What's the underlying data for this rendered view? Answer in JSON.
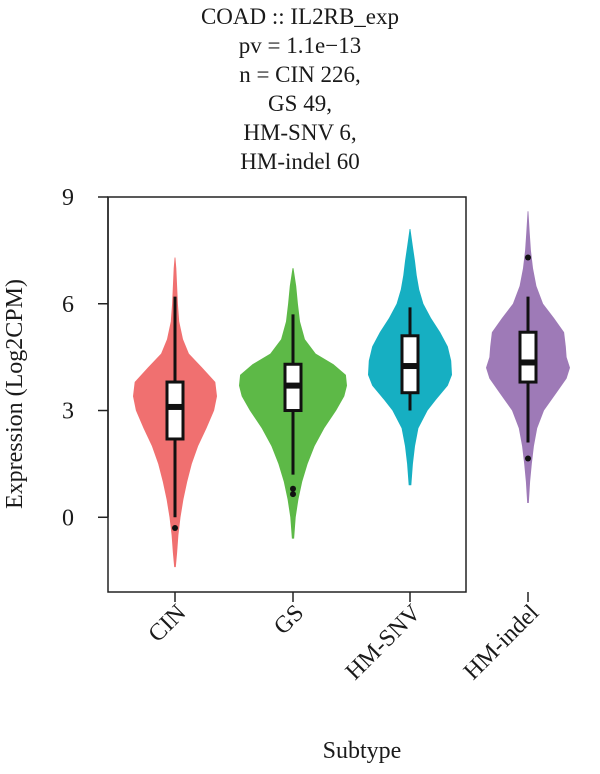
{
  "title_lines": [
    "COAD :: IL2RB_exp",
    "pv = 1.1e−13",
    "n = CIN 226,",
    "GS 49,",
    "HM-SNV 6,",
    "HM-indel 60"
  ],
  "chart_data": {
    "type": "violin",
    "title": "COAD :: IL2RB_exp",
    "subtitle": "pv = 1.1e−13; n = CIN 226, GS 49, HM-SNV 6, HM-indel 60",
    "xlabel": "Subtype",
    "ylabel": "Expression (Log2CPM)",
    "ylim": [
      -2.1,
      9
    ],
    "yticks": [
      0,
      3,
      6,
      9
    ],
    "categories": [
      "CIN",
      "GS",
      "HM-SNV",
      "HM-indel"
    ],
    "grid": false,
    "legend": "none",
    "series": [
      {
        "category": "CIN",
        "color": "#F07070",
        "n": 226,
        "min": -1.4,
        "max": 7.3,
        "box": {
          "whisker_low": 0.0,
          "q1": 2.2,
          "median": 3.1,
          "q3": 3.8,
          "whisker_high": 6.2
        },
        "outliers": [
          -0.3
        ],
        "density": [
          [
            -1.4,
            0.02
          ],
          [
            -1.0,
            0.05
          ],
          [
            -0.5,
            0.08
          ],
          [
            0.0,
            0.13
          ],
          [
            0.5,
            0.2
          ],
          [
            1.0,
            0.29
          ],
          [
            1.5,
            0.4
          ],
          [
            2.0,
            0.55
          ],
          [
            2.5,
            0.75
          ],
          [
            3.0,
            0.93
          ],
          [
            3.4,
            1.0
          ],
          [
            3.8,
            0.96
          ],
          [
            4.2,
            0.65
          ],
          [
            4.6,
            0.33
          ],
          [
            5.0,
            0.19
          ],
          [
            5.5,
            0.1
          ],
          [
            6.0,
            0.07
          ],
          [
            6.5,
            0.05
          ],
          [
            7.0,
            0.03
          ],
          [
            7.3,
            0.01
          ]
        ]
      },
      {
        "category": "GS",
        "color": "#5DB947",
        "n": 49,
        "min": -0.6,
        "max": 7.0,
        "box": {
          "whisker_low": 1.2,
          "q1": 3.0,
          "median": 3.7,
          "q3": 4.3,
          "whisker_high": 5.7
        },
        "outliers": [
          0.8,
          0.65
        ],
        "density": [
          [
            -0.6,
            0.02
          ],
          [
            0.0,
            0.05
          ],
          [
            0.5,
            0.1
          ],
          [
            1.0,
            0.17
          ],
          [
            1.5,
            0.27
          ],
          [
            2.0,
            0.4
          ],
          [
            2.5,
            0.58
          ],
          [
            3.0,
            0.8
          ],
          [
            3.4,
            0.95
          ],
          [
            3.7,
            1.0
          ],
          [
            4.0,
            0.98
          ],
          [
            4.3,
            0.75
          ],
          [
            4.6,
            0.42
          ],
          [
            5.0,
            0.22
          ],
          [
            5.5,
            0.13
          ],
          [
            6.0,
            0.09
          ],
          [
            6.5,
            0.06
          ],
          [
            7.0,
            0.01
          ]
        ]
      },
      {
        "category": "HM-SNV",
        "color": "#16AFC2",
        "n": 6,
        "min": 0.9,
        "max": 8.1,
        "box": {
          "whisker_low": 3.0,
          "q1": 3.5,
          "median": 4.25,
          "q3": 5.1,
          "whisker_high": 5.9
        },
        "outliers": [],
        "density": [
          [
            0.9,
            0.03
          ],
          [
            1.5,
            0.07
          ],
          [
            2.0,
            0.12
          ],
          [
            2.5,
            0.2
          ],
          [
            3.0,
            0.42
          ],
          [
            3.3,
            0.62
          ],
          [
            3.7,
            0.9
          ],
          [
            4.0,
            1.0
          ],
          [
            4.4,
            0.98
          ],
          [
            4.8,
            0.9
          ],
          [
            5.2,
            0.72
          ],
          [
            5.6,
            0.5
          ],
          [
            6.0,
            0.32
          ],
          [
            6.4,
            0.22
          ],
          [
            6.8,
            0.16
          ],
          [
            7.2,
            0.12
          ],
          [
            7.6,
            0.07
          ],
          [
            8.1,
            0.01
          ]
        ]
      },
      {
        "category": "HM-indel",
        "color": "#9E7AB7",
        "n": 60,
        "min": 0.4,
        "max": 8.6,
        "box": {
          "whisker_low": 2.1,
          "q1": 3.8,
          "median": 4.35,
          "q3": 5.2,
          "whisker_high": 6.2
        },
        "outliers": [
          7.3,
          1.65
        ],
        "density": [
          [
            0.4,
            0.02
          ],
          [
            1.0,
            0.05
          ],
          [
            1.5,
            0.09
          ],
          [
            2.0,
            0.14
          ],
          [
            2.5,
            0.22
          ],
          [
            3.0,
            0.38
          ],
          [
            3.5,
            0.68
          ],
          [
            3.9,
            0.92
          ],
          [
            4.2,
            1.0
          ],
          [
            4.5,
            0.92
          ],
          [
            4.8,
            0.9
          ],
          [
            5.2,
            0.86
          ],
          [
            5.6,
            0.62
          ],
          [
            6.0,
            0.36
          ],
          [
            6.5,
            0.2
          ],
          [
            7.0,
            0.12
          ],
          [
            7.5,
            0.07
          ],
          [
            8.0,
            0.04
          ],
          [
            8.6,
            0.01
          ]
        ]
      }
    ]
  }
}
